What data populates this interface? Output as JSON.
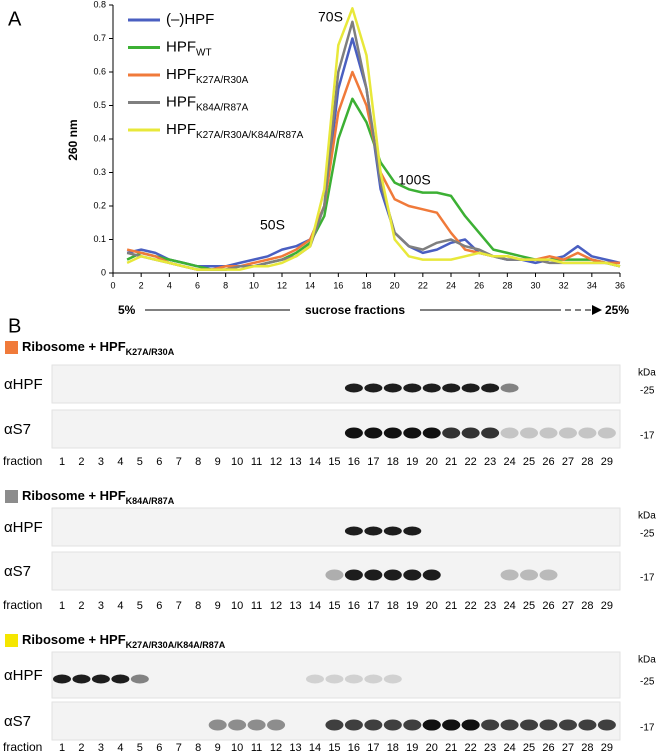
{
  "panel_labels": [
    "A",
    "B"
  ],
  "chart_data": {
    "type": "line",
    "ylabel": "260 nm",
    "xlabel": "sucrose fractions",
    "gradient_start": "5%",
    "gradient_end": "25%",
    "annotations": [
      "70S",
      "100S",
      "50S"
    ],
    "xlim": [
      0,
      36
    ],
    "xticks": [
      0,
      2,
      4,
      6,
      8,
      10,
      12,
      14,
      16,
      18,
      20,
      22,
      24,
      26,
      28,
      30,
      32,
      34,
      36
    ],
    "ylim": [
      0,
      0.8
    ],
    "yticks": [
      0,
      0.1,
      0.2,
      0.3,
      0.4,
      0.5,
      0.6,
      0.7,
      0.8
    ],
    "x": [
      1,
      2,
      3,
      4,
      5,
      6,
      7,
      8,
      9,
      10,
      11,
      12,
      13,
      14,
      15,
      16,
      17,
      18,
      19,
      20,
      21,
      22,
      23,
      24,
      25,
      26,
      27,
      28,
      29,
      30,
      31,
      32,
      33,
      34,
      35,
      36
    ],
    "series": [
      {
        "name": "(–)HPF",
        "color": "#4a5fc1",
        "values": [
          0.06,
          0.07,
          0.06,
          0.04,
          0.03,
          0.02,
          0.02,
          0.02,
          0.03,
          0.04,
          0.05,
          0.07,
          0.08,
          0.1,
          0.2,
          0.55,
          0.7,
          0.55,
          0.25,
          0.12,
          0.08,
          0.06,
          0.07,
          0.09,
          0.1,
          0.06,
          0.05,
          0.04,
          0.04,
          0.03,
          0.04,
          0.05,
          0.08,
          0.05,
          0.04,
          0.03
        ]
      },
      {
        "name": "HPF",
        "subscript": "WT",
        "color": "#3cb034",
        "values": [
          0.04,
          0.06,
          0.05,
          0.04,
          0.03,
          0.02,
          0.01,
          0.01,
          0.02,
          0.02,
          0.03,
          0.04,
          0.06,
          0.09,
          0.17,
          0.4,
          0.52,
          0.45,
          0.33,
          0.27,
          0.25,
          0.24,
          0.24,
          0.23,
          0.17,
          0.12,
          0.07,
          0.06,
          0.05,
          0.04,
          0.04,
          0.04,
          0.04,
          0.04,
          0.03,
          0.02
        ]
      },
      {
        "name": "HPF",
        "subscript": "K27A/R30A",
        "color": "#f07a3a",
        "values": [
          0.07,
          0.06,
          0.05,
          0.03,
          0.02,
          0.01,
          0.01,
          0.02,
          0.02,
          0.03,
          0.04,
          0.05,
          0.07,
          0.1,
          0.2,
          0.48,
          0.6,
          0.5,
          0.3,
          0.22,
          0.2,
          0.19,
          0.18,
          0.12,
          0.07,
          0.06,
          0.05,
          0.05,
          0.04,
          0.04,
          0.05,
          0.04,
          0.06,
          0.04,
          0.03,
          0.03
        ]
      },
      {
        "name": "HPF",
        "subscript": "K84A/R87A",
        "color": "#7f7f7f",
        "values": [
          0.06,
          0.05,
          0.04,
          0.03,
          0.02,
          0.01,
          0.01,
          0.01,
          0.02,
          0.02,
          0.03,
          0.04,
          0.05,
          0.08,
          0.2,
          0.6,
          0.75,
          0.55,
          0.27,
          0.12,
          0.08,
          0.07,
          0.09,
          0.1,
          0.08,
          0.07,
          0.05,
          0.04,
          0.04,
          0.04,
          0.03,
          0.03,
          0.03,
          0.03,
          0.03,
          0.02
        ]
      },
      {
        "name": "HPF",
        "subscript": "K27A/R30A/K84A/R87A",
        "color": "#e8e83a",
        "values": [
          0.03,
          0.05,
          0.04,
          0.03,
          0.02,
          0.01,
          0.01,
          0.01,
          0.01,
          0.02,
          0.02,
          0.03,
          0.05,
          0.08,
          0.25,
          0.68,
          0.79,
          0.65,
          0.3,
          0.1,
          0.05,
          0.04,
          0.04,
          0.04,
          0.05,
          0.06,
          0.05,
          0.05,
          0.04,
          0.04,
          0.04,
          0.03,
          0.03,
          0.03,
          0.03,
          0.02
        ]
      }
    ]
  },
  "blots": [
    {
      "title": "Ribosome + HPF",
      "subscript": "K27A/R30A",
      "color": "#f07a3a",
      "rows": [
        "αHPF",
        "αS7"
      ]
    },
    {
      "title": "Ribosome + HPF",
      "subscript": "K84A/R87A",
      "color": "#8c8c8c",
      "rows": [
        "αHPF",
        "αS7"
      ]
    },
    {
      "title": "Ribosome + HPF",
      "subscript": "K27A/R30A/K84A/R87A",
      "color": "#f5e600",
      "rows": [
        "αHPF",
        "αS7"
      ]
    }
  ],
  "marker_unit": "kDa",
  "markers": [
    "-25",
    "-17"
  ],
  "fraction_label": "fraction",
  "fractions": [
    1,
    2,
    3,
    4,
    5,
    6,
    7,
    8,
    9,
    10,
    11,
    12,
    13,
    14,
    15,
    16,
    17,
    18,
    19,
    20,
    21,
    22,
    23,
    24,
    25,
    26,
    27,
    28,
    29
  ]
}
